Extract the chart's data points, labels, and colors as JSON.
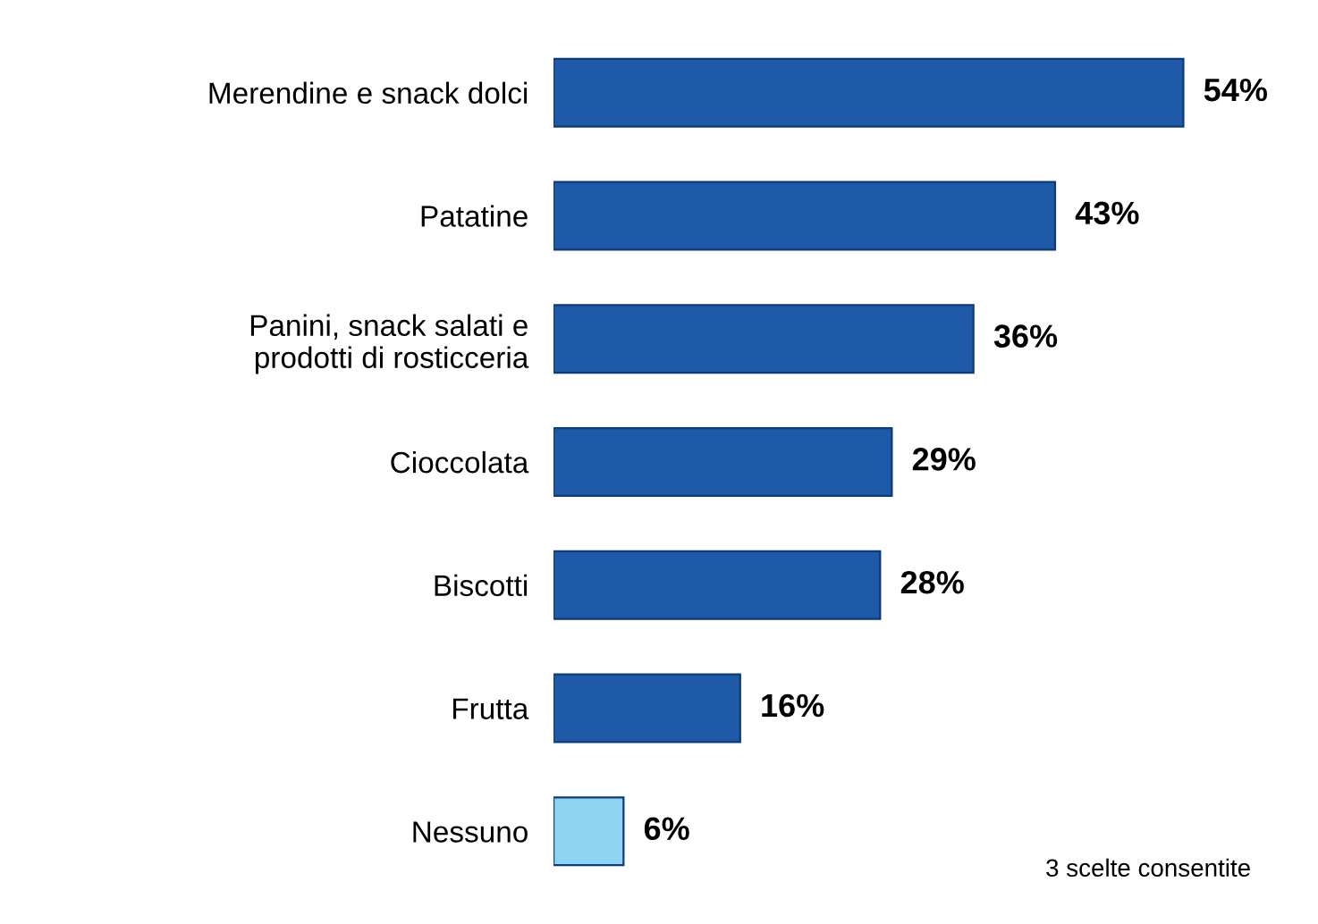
{
  "chart_data": {
    "type": "bar",
    "orientation": "horizontal",
    "categories": [
      "Merendine e snack dolci",
      "Patatine",
      "Panini, snack salati e\nprodotti di rosticceria",
      "Cioccolata",
      "Biscotti",
      "Frutta",
      "Nessuno"
    ],
    "values": [
      54,
      43,
      36,
      29,
      28,
      16,
      6
    ],
    "value_labels": [
      "54%",
      "43%",
      "36%",
      "29%",
      "28%",
      "16%",
      "6%"
    ],
    "colors": [
      "#1f5aa8",
      "#1f5aa8",
      "#1f5aa8",
      "#1f5aa8",
      "#1f5aa8",
      "#1f5aa8",
      "#8ed4f2"
    ],
    "annotations": [
      "3 scelte consentite"
    ]
  }
}
